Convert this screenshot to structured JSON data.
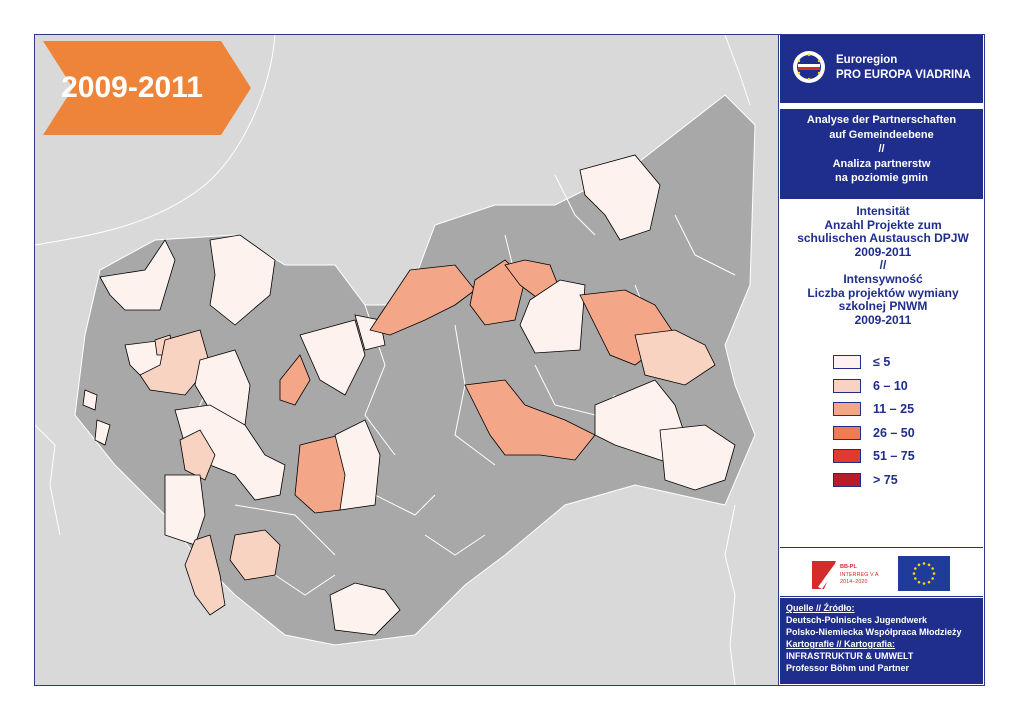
{
  "period_label": "2009-2011",
  "organization": {
    "line1": "Euroregion",
    "line2": "PRO EUROPA VIADRINA"
  },
  "title": {
    "line1": "Analyse der Partnerschaften",
    "line2": "auf Gemeindeebene",
    "line3": "//",
    "line4": "Analiza partnerstw",
    "line5": "na poziomie gmin"
  },
  "subtitle": {
    "line1": "Intensität",
    "line2": "Anzahl Projekte zum",
    "line3": "schulischen Austausch DPJW",
    "line4": "2009-2011",
    "line5": "//",
    "line6": "Intensywność",
    "line7": "Liczba projektów  wymiany",
    "line8": "szkolnej PNWM",
    "line9": "2009-2011"
  },
  "legend": [
    {
      "label": "≤ 5",
      "color": "#fdf2ee"
    },
    {
      "label": "6 – 10",
      "color": "#f8d3c2"
    },
    {
      "label": "11 – 25",
      "color": "#f3a688"
    },
    {
      "label": "26 – 50",
      "color": "#ef7b52"
    },
    {
      "label": "51 – 75",
      "color": "#e23a2e"
    },
    {
      "label": "> 75",
      "color": "#b81d2a"
    }
  ],
  "logos": {
    "interreg_line1": "BB-PL",
    "interreg_line2": "INTERREG V A",
    "interreg_line3": "2014–2020"
  },
  "source": {
    "source_label": "Quelle // Źródło:",
    "source_line1": "Deutsch-Polnisches Jugendwerk",
    "source_line2": "Polsko-Niemiecka Współpraca Młodzieży",
    "carto_label": "Kartografie // Kartografia:",
    "carto_line1": "INFRASTRUKTUR & UMWELT",
    "carto_line2": "Professor Böhm und Partner"
  },
  "colors": {
    "frame": "#2a3b8f",
    "panel_blue": "#1f2d8c",
    "badge": "#ee843a",
    "outside": "#d9d9d9",
    "region": "#a8a8a8"
  }
}
